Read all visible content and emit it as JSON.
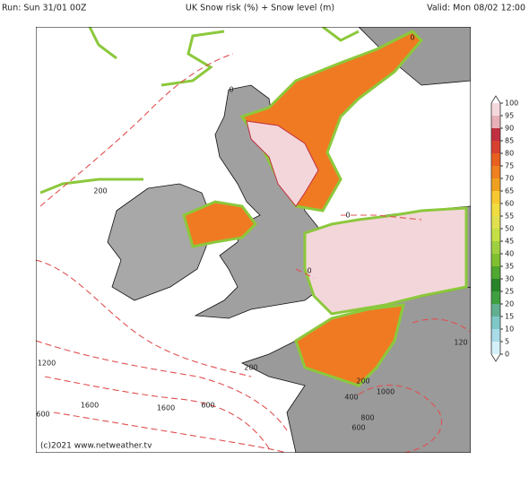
{
  "header": {
    "run": "Run: Sun 31/01 00Z",
    "title": "UK Snow risk (%) + Snow level (m)",
    "valid": "Valid: Mon 08/02 12:00"
  },
  "colorbar": {
    "ticks": [
      0,
      5,
      10,
      15,
      20,
      25,
      30,
      35,
      40,
      45,
      50,
      55,
      60,
      65,
      70,
      75,
      80,
      85,
      90,
      95,
      100
    ],
    "colors": [
      "#d4f0f8",
      "#a8dce8",
      "#80c8c8",
      "#60b090",
      "#40a040",
      "#288428",
      "#50a830",
      "#80c030",
      "#a0d040",
      "#c4e044",
      "#e0e050",
      "#f0dc40",
      "#f8c830",
      "#f0a020",
      "#f08020",
      "#e86020",
      "#d84030",
      "#c03040",
      "#e8b0b8",
      "#f5d8dc"
    ]
  },
  "contour_labels": [
    "0",
    "0",
    "0",
    "0",
    "200",
    "200",
    "200",
    "1200",
    "1600",
    "1600",
    "600",
    "600",
    "400",
    "1000",
    "800",
    "600",
    "120"
  ],
  "copyright": "(c)2021 www.netweather.tv"
}
